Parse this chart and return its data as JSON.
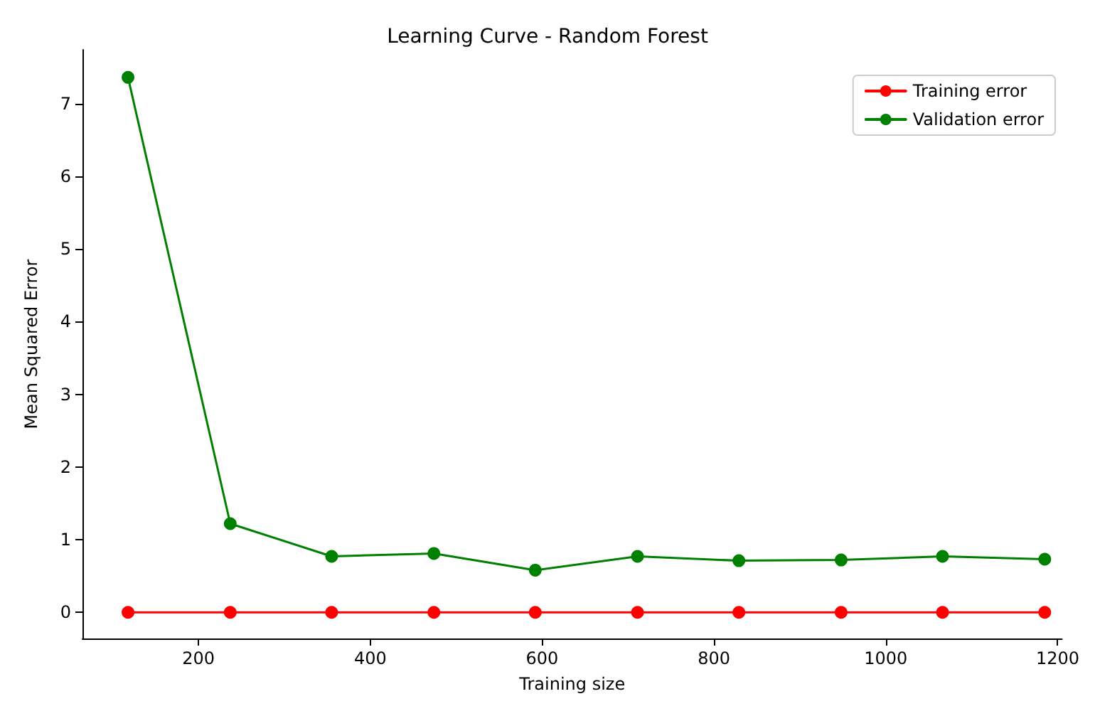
{
  "chart_data": {
    "type": "line",
    "title": "Learning Curve - Random Forest",
    "xlabel": "Training size",
    "ylabel": "Mean Squared Error",
    "x": [
      118,
      237,
      355,
      474,
      592,
      711,
      829,
      948,
      1066,
      1185
    ],
    "series": [
      {
        "name": "Training error",
        "color": "#ff0000",
        "values": [
          0,
          0,
          0,
          0,
          0,
          0,
          0,
          0,
          0,
          0
        ]
      },
      {
        "name": "Validation error",
        "color": "#008000",
        "values": [
          7.36,
          1.22,
          0.77,
          0.81,
          0.58,
          0.77,
          0.71,
          0.72,
          0.77,
          0.73
        ]
      }
    ],
    "xlim": [
      65,
      1205
    ],
    "xticks": [
      200,
      400,
      600,
      800,
      1000,
      1200
    ],
    "ylim": [
      -0.36,
      7.74
    ],
    "yticks": [
      0,
      1,
      2,
      3,
      4,
      5,
      6,
      7
    ],
    "grid": false,
    "legend": "top right",
    "marker": "circle",
    "line_style": "solid"
  }
}
